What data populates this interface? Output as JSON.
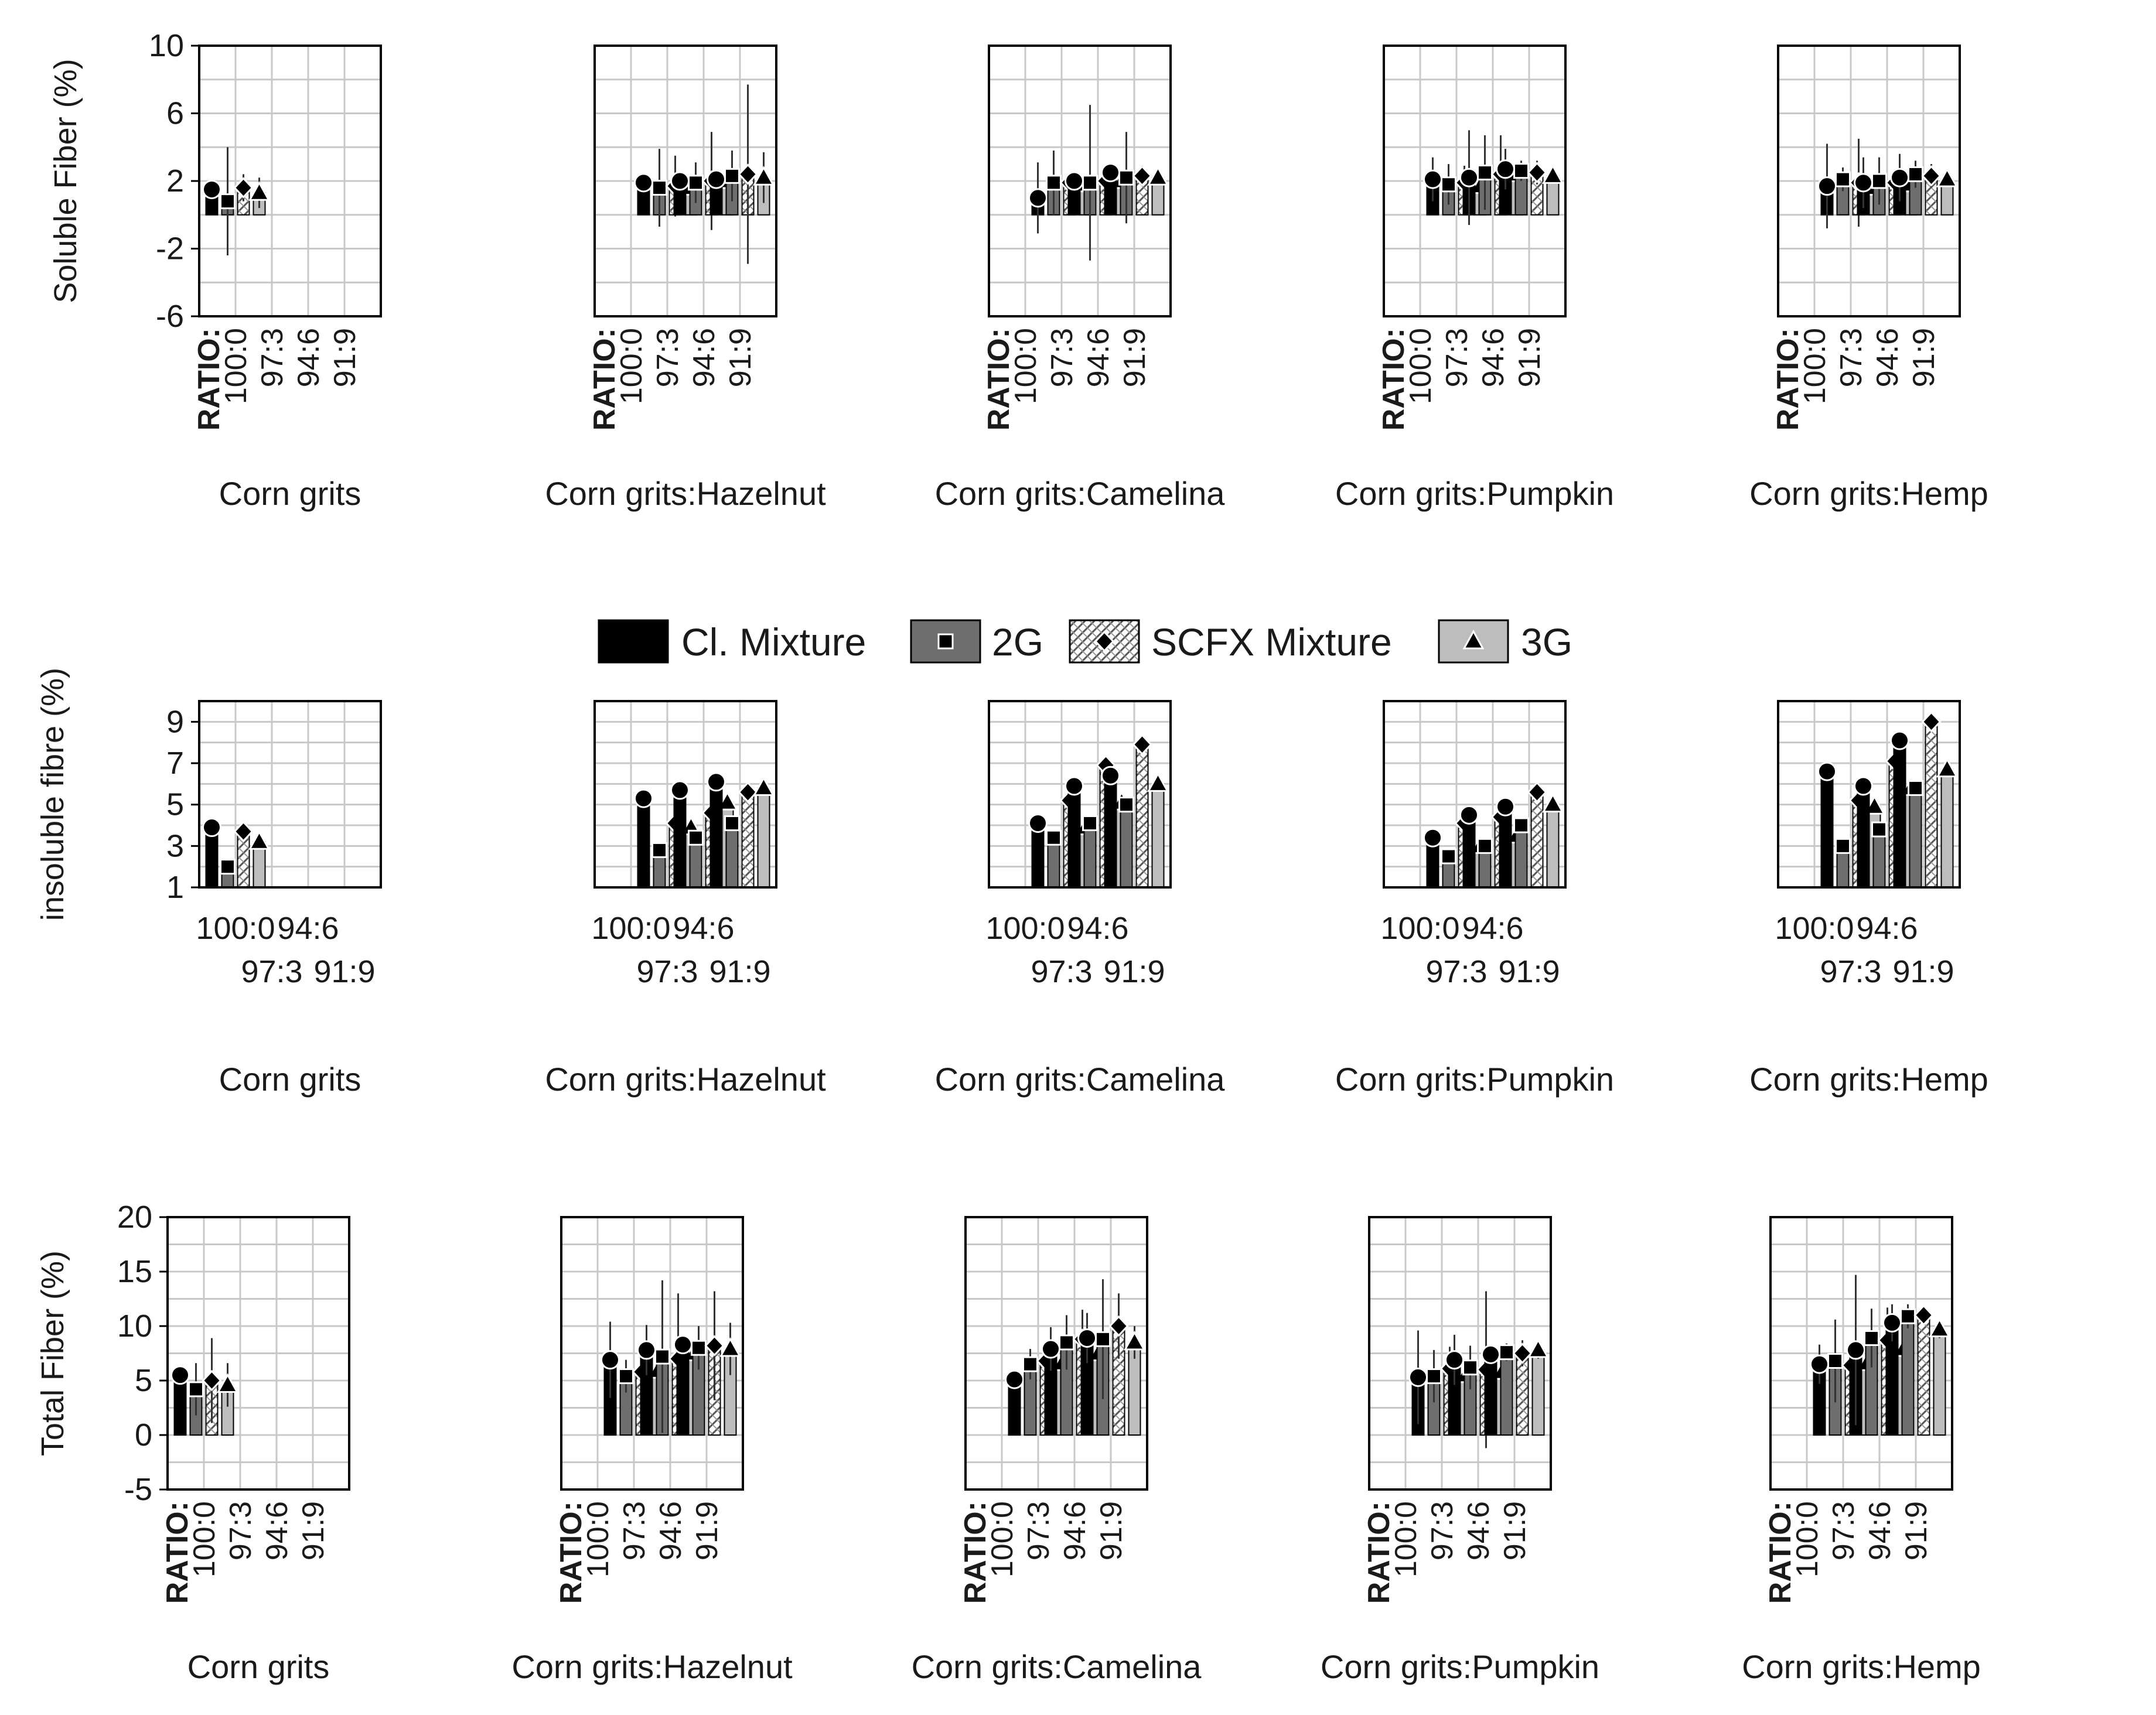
{
  "legend": [
    {
      "name": "Cl. Mixture",
      "marker": "none",
      "fill": "#000000"
    },
    {
      "name": "2G",
      "marker": "square",
      "fill": "#6e6e6e"
    },
    {
      "name": "SCFX Mixture",
      "marker": "diamond",
      "fill": "pattern"
    },
    {
      "name": "3G",
      "marker": "triangle",
      "fill": "#bdbdbd"
    }
  ],
  "chart_data": [
    {
      "type": "bar",
      "ylabel": "Soluble Fiber (%)",
      "ylim": [
        -6,
        10
      ],
      "yticks": [
        -6,
        -2,
        2,
        6,
        10
      ],
      "ratio_word": "RATIO:",
      "categories": [
        "100:0",
        "97:3",
        "94:6",
        "91:9"
      ],
      "panels": [
        {
          "title": "Corn grits",
          "values": [
            [
              1.5,
              0.8,
              1.6,
              1.3
            ],
            null,
            null,
            null
          ],
          "errors": [
            [
              0.5,
              3.2,
              0.8,
              0.9
            ],
            null,
            null,
            null
          ]
        },
        {
          "title": "Corn grits:Hazelnut",
          "values": [
            null,
            [
              1.9,
              1.6,
              1.7,
              1.6
            ],
            [
              2.0,
              1.9,
              2.0,
              2.0
            ],
            [
              2.1,
              2.3,
              2.4,
              2.2
            ]
          ],
          "errors": [
            null,
            [
              0.4,
              2.3,
              1.8,
              0.6
            ],
            [
              0.3,
              1.2,
              2.9,
              0.6
            ],
            [
              0.4,
              1.5,
              5.3,
              1.5
            ]
          ]
        },
        {
          "title": "Corn grits:Camelina",
          "values": [
            null,
            [
              1.0,
              1.9,
              1.9,
              1.8
            ],
            [
              2.0,
              1.9,
              2.0,
              2.0
            ],
            [
              2.5,
              2.2,
              2.3,
              2.2
            ]
          ],
          "errors": [
            null,
            [
              2.1,
              1.9,
              0.4,
              0.4
            ],
            [
              0.3,
              4.6,
              0.6,
              0.3
            ],
            [
              0.5,
              2.7,
              0.6,
              0.3
            ]
          ]
        },
        {
          "title": "Corn grits:Pumpkin",
          "values": [
            null,
            [
              2.1,
              1.8,
              1.9,
              1.7
            ],
            [
              2.2,
              2.5,
              2.4,
              2.4
            ],
            [
              2.7,
              2.6,
              2.5,
              2.3
            ]
          ],
          "errors": [
            null,
            [
              1.3,
              1.2,
              1.0,
              0.4
            ],
            [
              2.8,
              2.2,
              2.3,
              0.5
            ],
            [
              1.2,
              0.6,
              0.7,
              0.3
            ]
          ]
        },
        {
          "title": "Corn grits:Hemp",
          "values": [
            null,
            [
              1.7,
              2.1,
              1.9,
              1.6
            ],
            [
              1.9,
              2.0,
              1.9,
              1.8
            ],
            [
              2.2,
              2.4,
              2.3,
              2.1
            ]
          ],
          "errors": [
            null,
            [
              2.5,
              0.7,
              2.6,
              0.4
            ],
            [
              1.5,
              1.4,
              0.6,
              0.3
            ],
            [
              1.4,
              0.8,
              0.7,
              0.3
            ]
          ]
        }
      ]
    },
    {
      "type": "bar",
      "ylabel": "insoluble fibre (%)",
      "ylim": [
        1,
        10
      ],
      "yticks": [
        1,
        3,
        5,
        7,
        9
      ],
      "ratio_word": "",
      "categories": [
        "100:0",
        "97:3",
        "94:6",
        "91:9"
      ],
      "panels": [
        {
          "title": "Corn grits",
          "values": [
            [
              3.9,
              2.0,
              3.7,
              3.2
            ],
            null,
            null,
            null
          ],
          "errors": null
        },
        {
          "title": "Corn grits:Hazelnut",
          "values": [
            null,
            [
              5.3,
              2.8,
              4.1,
              3.9
            ],
            [
              5.7,
              3.4,
              4.6,
              5.1
            ],
            [
              6.1,
              4.1,
              5.6,
              5.8
            ]
          ],
          "errors": null
        },
        {
          "title": "Corn grits:Camelina",
          "values": [
            null,
            [
              4.1,
              3.4,
              5.2,
              3.9
            ],
            [
              5.9,
              4.1,
              6.9,
              5.1
            ],
            [
              6.4,
              5.0,
              7.9,
              6.0
            ]
          ],
          "errors": null
        },
        {
          "title": "Corn grits:Pumpkin",
          "values": [
            null,
            [
              3.4,
              2.5,
              4.1,
              3.0
            ],
            [
              4.5,
              3.0,
              4.4,
              3.5
            ],
            [
              4.9,
              4.0,
              5.6,
              5.0
            ]
          ],
          "errors": null
        },
        {
          "title": "Corn grits:Hemp",
          "values": [
            null,
            [
              6.6,
              3.0,
              5.2,
              4.9
            ],
            [
              5.9,
              3.8,
              7.1,
              5.8
            ],
            [
              8.1,
              5.8,
              9.0,
              6.7
            ]
          ],
          "errors": null
        }
      ]
    },
    {
      "type": "bar",
      "ylabel": "Total Fiber (%)",
      "ylim": [
        -5,
        20
      ],
      "yticks": [
        -5,
        0,
        5,
        10,
        15,
        20
      ],
      "ratio_word": "RATIO:",
      "categories": [
        "100:0",
        "97:3",
        "94:6",
        "91:9"
      ],
      "panels": [
        {
          "title": "Corn grits",
          "values": [
            [
              5.5,
              4.2,
              5.0,
              4.6
            ],
            null,
            null,
            null
          ],
          "errors": [
            [
              0.5,
              2.4,
              3.9,
              2.0
            ],
            null,
            null,
            null
          ]
        },
        {
          "title": "Corn grits:Hazelnut",
          "values": [
            null,
            [
              6.9,
              5.4,
              5.8,
              5.9
            ],
            [
              7.8,
              7.2,
              7.0,
              7.5
            ],
            [
              8.3,
              8.0,
              8.2,
              7.9
            ]
          ],
          "errors": [
            null,
            [
              3.5,
              1.5,
              1.5,
              1.2
            ],
            [
              2.3,
              7.0,
              6.0,
              1.0
            ],
            [
              0.5,
              2.0,
              5.0,
              2.4
            ]
          ]
        },
        {
          "title": "Corn grits:Camelina",
          "values": [
            null,
            [
              5.1,
              6.5,
              6.8,
              6.6
            ],
            [
              7.9,
              8.5,
              8.8,
              7.5
            ],
            [
              8.9,
              8.8,
              10.0,
              8.5
            ]
          ],
          "errors": [
            null,
            [
              0.5,
              1.4,
              1.5,
              1.4
            ],
            [
              2.0,
              2.5,
              2.7,
              1.5
            ],
            [
              2.3,
              5.5,
              3.0,
              1.5
            ]
          ]
        },
        {
          "title": "Corn grits:Pumpkin",
          "values": [
            null,
            [
              5.3,
              5.4,
              6.1,
              5.5
            ],
            [
              6.9,
              6.2,
              6.0,
              5.8
            ],
            [
              7.4,
              7.6,
              7.5,
              7.8
            ]
          ],
          "errors": [
            null,
            [
              4.3,
              2.4,
              2.0,
              1.2
            ],
            [
              2.3,
              2.0,
              7.2,
              1.5
            ],
            [
              0.6,
              0.8,
              1.2,
              0.8
            ]
          ]
        },
        {
          "title": "Corn grits:Hemp",
          "values": [
            null,
            [
              6.5,
              6.8,
              6.4,
              6.6
            ],
            [
              7.8,
              8.9,
              8.7,
              7.9
            ],
            [
              10.3,
              10.9,
              11.0,
              9.7
            ]
          ],
          "errors": [
            null,
            [
              1.8,
              3.8,
              2.0,
              1.2
            ],
            [
              6.9,
              2.7,
              3.0,
              1.5
            ],
            [
              1.7,
              1.1,
              0.6,
              0.8
            ]
          ]
        }
      ]
    }
  ]
}
